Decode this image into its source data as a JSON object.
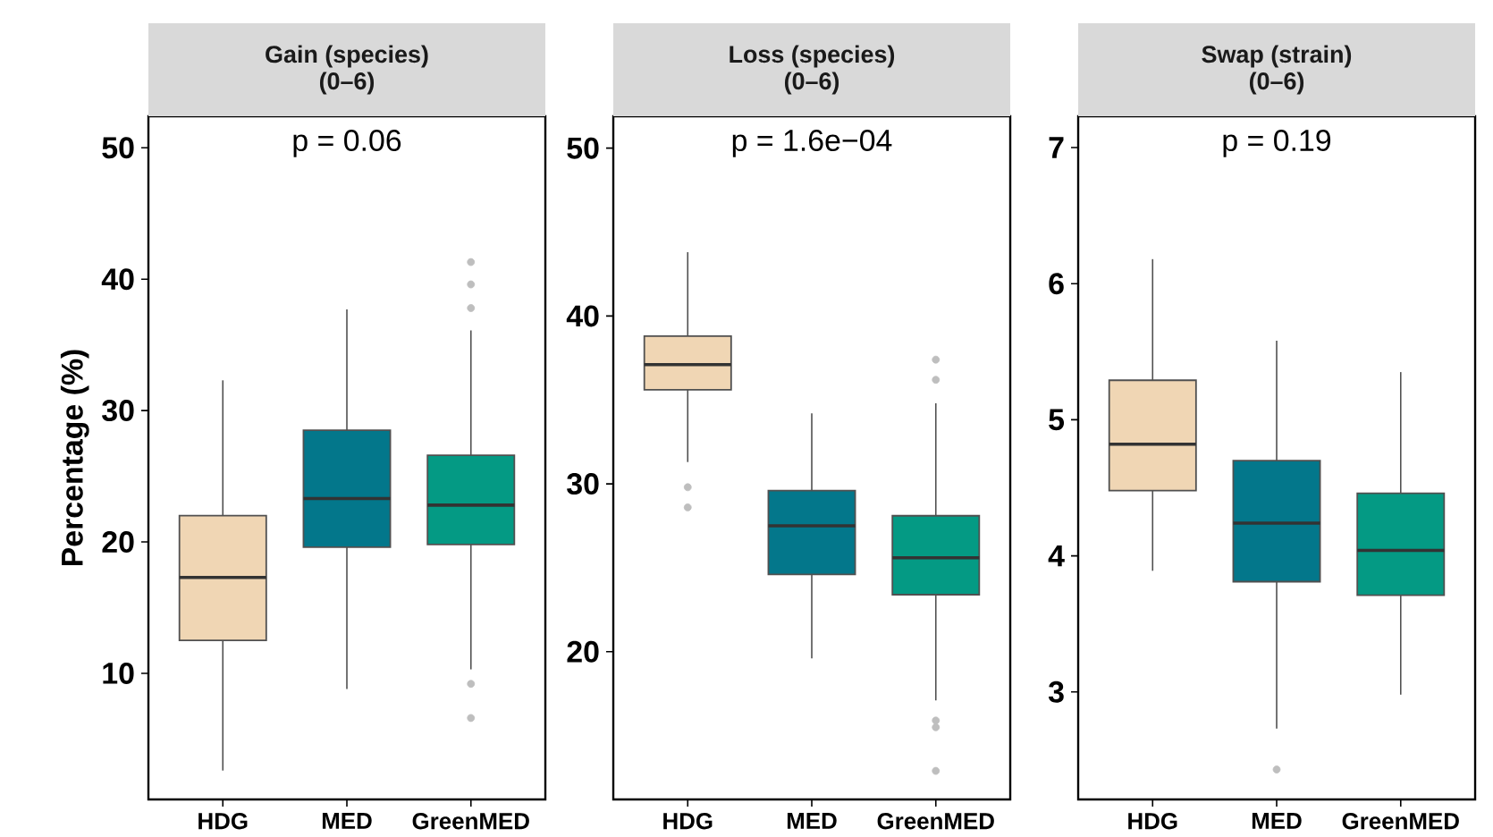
{
  "chart_data": [
    {
      "type": "box",
      "title": "Gain (species)",
      "subtitle": "(0–6)",
      "ylabel": "Percentage (%)",
      "annotations": [
        "p = 0.06"
      ],
      "categories": [
        "HDG",
        "MED",
        "GreenMED"
      ],
      "colors": [
        "#f0d6b4",
        "#03778b",
        "#049a84"
      ],
      "boxes": [
        {
          "low": 2.6,
          "q1": 12.5,
          "median": 17.3,
          "q3": 22.0,
          "high": 32.3
        },
        {
          "low": 8.8,
          "q1": 19.6,
          "median": 23.3,
          "q3": 28.5,
          "high": 37.7
        },
        {
          "low": 10.3,
          "q1": 19.8,
          "median": 22.8,
          "q3": 26.6,
          "high": 36.1,
          "outliers": [
            41.3,
            39.6,
            37.8,
            9.2,
            6.6
          ]
        }
      ],
      "ylim": [
        0.4,
        52.4
      ],
      "yticks": [
        10,
        20,
        30,
        40,
        50
      ]
    },
    {
      "type": "box",
      "title": "Loss (species)",
      "subtitle": "(0–6)",
      "annotations": [
        "p = 1.6e−04"
      ],
      "categories": [
        "HDG",
        "MED",
        "GreenMED"
      ],
      "colors": [
        "#f0d6b4",
        "#03778b",
        "#049a84"
      ],
      "boxes": [
        {
          "low": 31.3,
          "q1": 35.6,
          "median": 37.1,
          "q3": 38.8,
          "high": 43.8,
          "outliers": [
            29.8,
            28.6
          ]
        },
        {
          "low": 19.6,
          "q1": 24.6,
          "median": 27.5,
          "q3": 29.6,
          "high": 34.2
        },
        {
          "low": 17.1,
          "q1": 23.4,
          "median": 25.6,
          "q3": 28.1,
          "high": 34.8,
          "outliers": [
            37.4,
            36.2,
            15.9,
            15.5,
            12.9
          ]
        }
      ],
      "ylim": [
        11.2,
        51.9
      ],
      "yticks": [
        20,
        30,
        40,
        50
      ]
    },
    {
      "type": "box",
      "title": "Swap (strain)",
      "subtitle": "(0–6)",
      "annotations": [
        "p = 0.19"
      ],
      "categories": [
        "HDG",
        "MED",
        "GreenMED"
      ],
      "colors": [
        "#f0d6b4",
        "#03778b",
        "#049a84"
      ],
      "boxes": [
        {
          "low": 3.89,
          "q1": 4.48,
          "median": 4.82,
          "q3": 5.29,
          "high": 6.18
        },
        {
          "low": 2.73,
          "q1": 3.81,
          "median": 4.24,
          "q3": 4.7,
          "high": 5.58,
          "outliers": [
            2.43
          ]
        },
        {
          "low": 2.98,
          "q1": 3.71,
          "median": 4.04,
          "q3": 4.46,
          "high": 5.35
        }
      ],
      "ylim": [
        2.21,
        7.23
      ],
      "yticks": [
        3,
        4,
        5,
        6,
        7
      ]
    }
  ]
}
